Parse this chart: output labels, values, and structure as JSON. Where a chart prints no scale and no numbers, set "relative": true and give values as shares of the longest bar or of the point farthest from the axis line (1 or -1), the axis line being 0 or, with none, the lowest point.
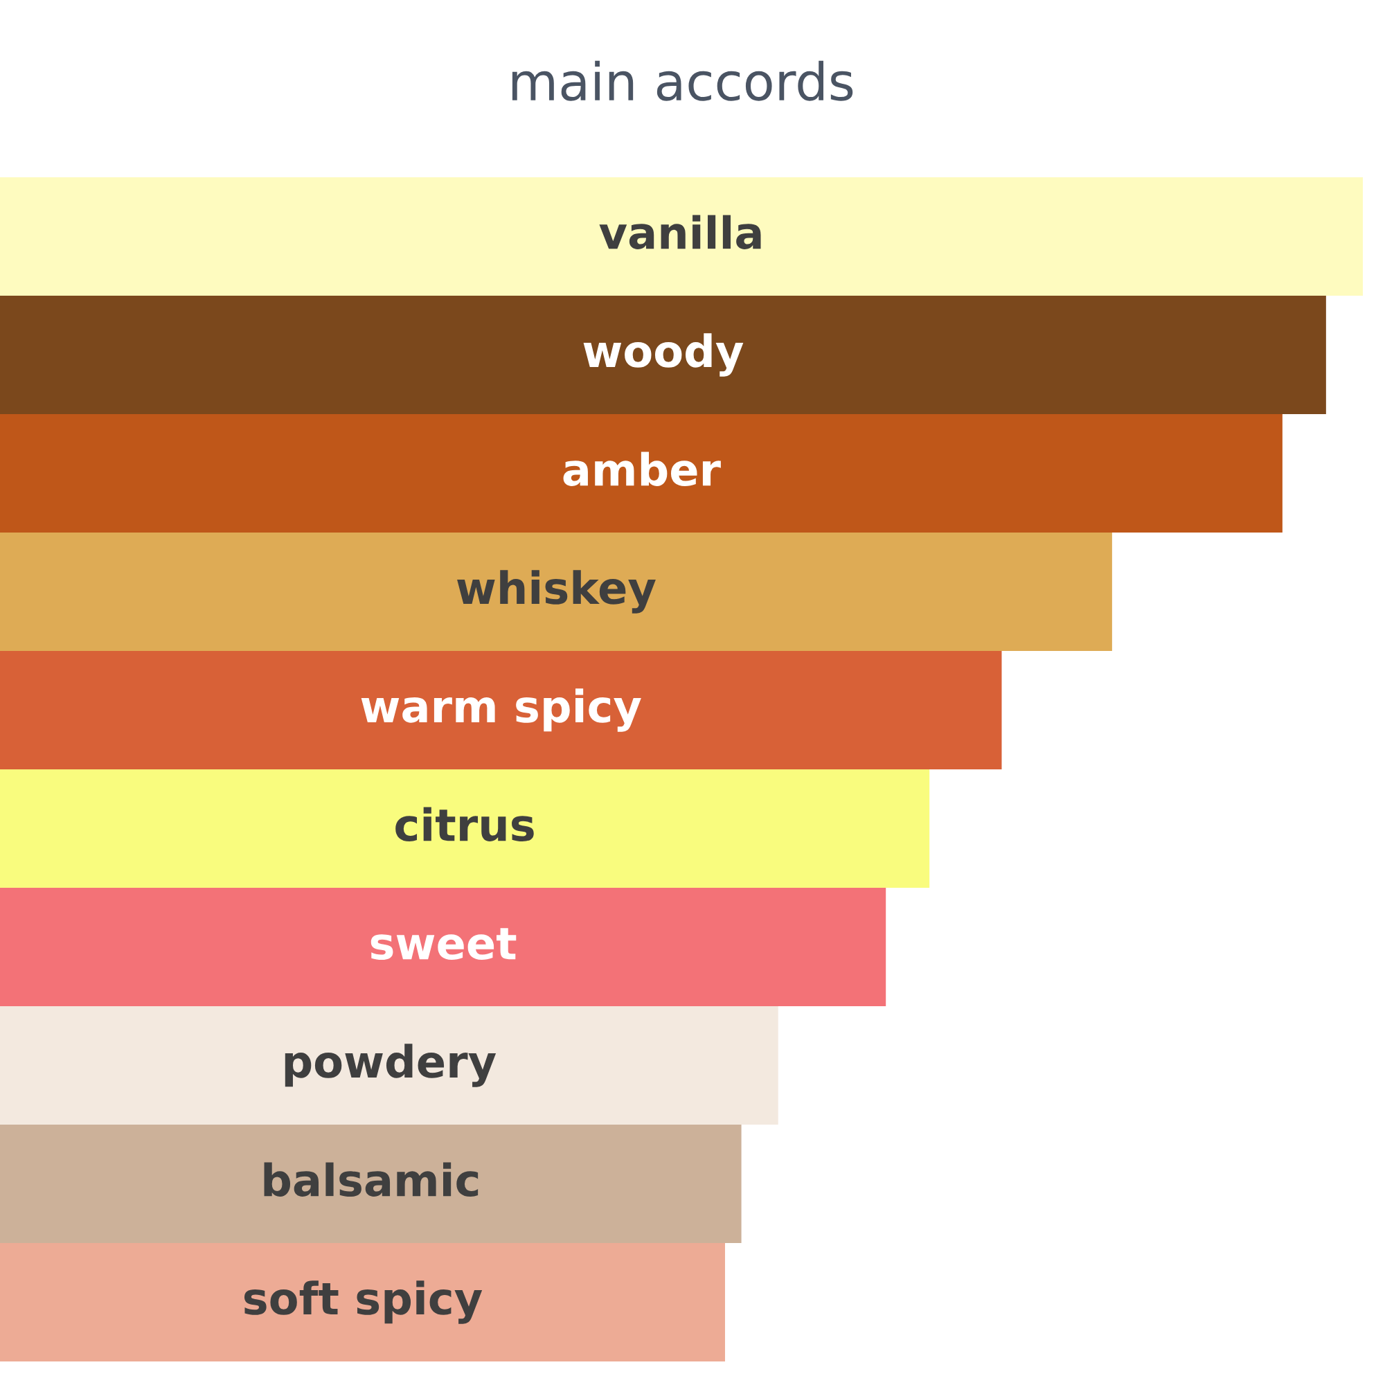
{
  "chart_data": {
    "type": "bar",
    "orientation": "horizontal",
    "relative": true,
    "title": "main accords",
    "categories": [
      "vanilla",
      "woody",
      "amber",
      "whiskey",
      "warm spicy",
      "citrus",
      "sweet",
      "powdery",
      "balsamic",
      "soft spicy"
    ],
    "values": [
      1,
      0.973,
      0.941,
      0.816,
      0.735,
      0.682,
      0.65,
      0.571,
      0.544,
      0.532
    ],
    "colors": [
      "#fefbbf",
      "#7b481c",
      "#bf5719",
      "#deab55",
      "#d86137",
      "#f9fc7e",
      "#f37277",
      "#f3e9df",
      "#ccb199",
      "#edab95"
    ]
  }
}
